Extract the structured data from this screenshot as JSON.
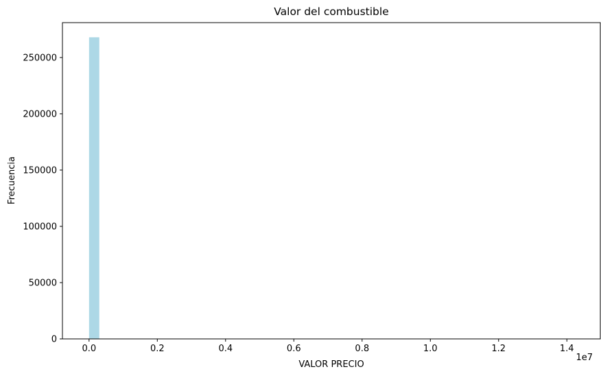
{
  "chart_data": {
    "type": "bar",
    "title": "Valor del combustible",
    "xlabel": "VALOR PRECIO",
    "ylabel": "Frecuencia",
    "x_offset_label": "1e7",
    "xlim": [
      -780000,
      14980000
    ],
    "ylim": [
      0,
      281000
    ],
    "x_ticks": [
      0,
      2000000,
      4000000,
      6000000,
      8000000,
      10000000,
      12000000,
      14000000
    ],
    "x_tick_labels": [
      "0.0",
      "0.2",
      "0.4",
      "0.6",
      "0.8",
      "1.0",
      "1.2",
      "1.4"
    ],
    "y_ticks": [
      0,
      50000,
      100000,
      150000,
      200000,
      250000
    ],
    "y_tick_labels": [
      "0",
      "50000",
      "100000",
      "150000",
      "200000",
      "250000"
    ],
    "bins": [
      {
        "x0": 0,
        "x1": 300000,
        "count": 268000
      }
    ],
    "bar_color": "#add8e6",
    "grid": false,
    "legend": "none"
  }
}
